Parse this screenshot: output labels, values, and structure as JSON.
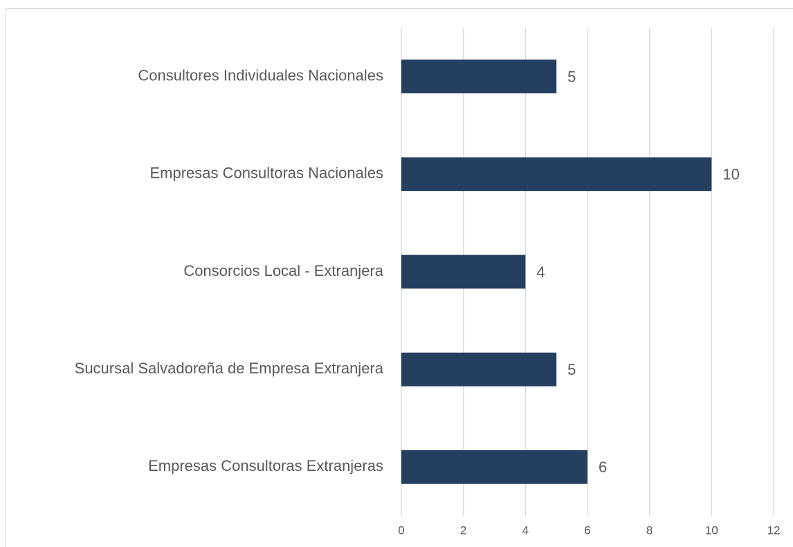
{
  "chart_data": {
    "type": "bar",
    "orientation": "horizontal",
    "categories": [
      "Consultores Individuales Nacionales",
      "Empresas Consultoras Nacionales",
      "Consorcios Local - Extranjera",
      "Sucursal Salvadoreña de Empresa Extranjera",
      "Empresas Consultoras Extranjeras"
    ],
    "values": [
      5,
      10,
      4,
      5,
      6
    ],
    "color": "#243f60",
    "xlim": [
      0,
      12
    ],
    "xticks": [
      0,
      2,
      4,
      6,
      8,
      10,
      12
    ],
    "grid": true,
    "data_labels": true
  }
}
